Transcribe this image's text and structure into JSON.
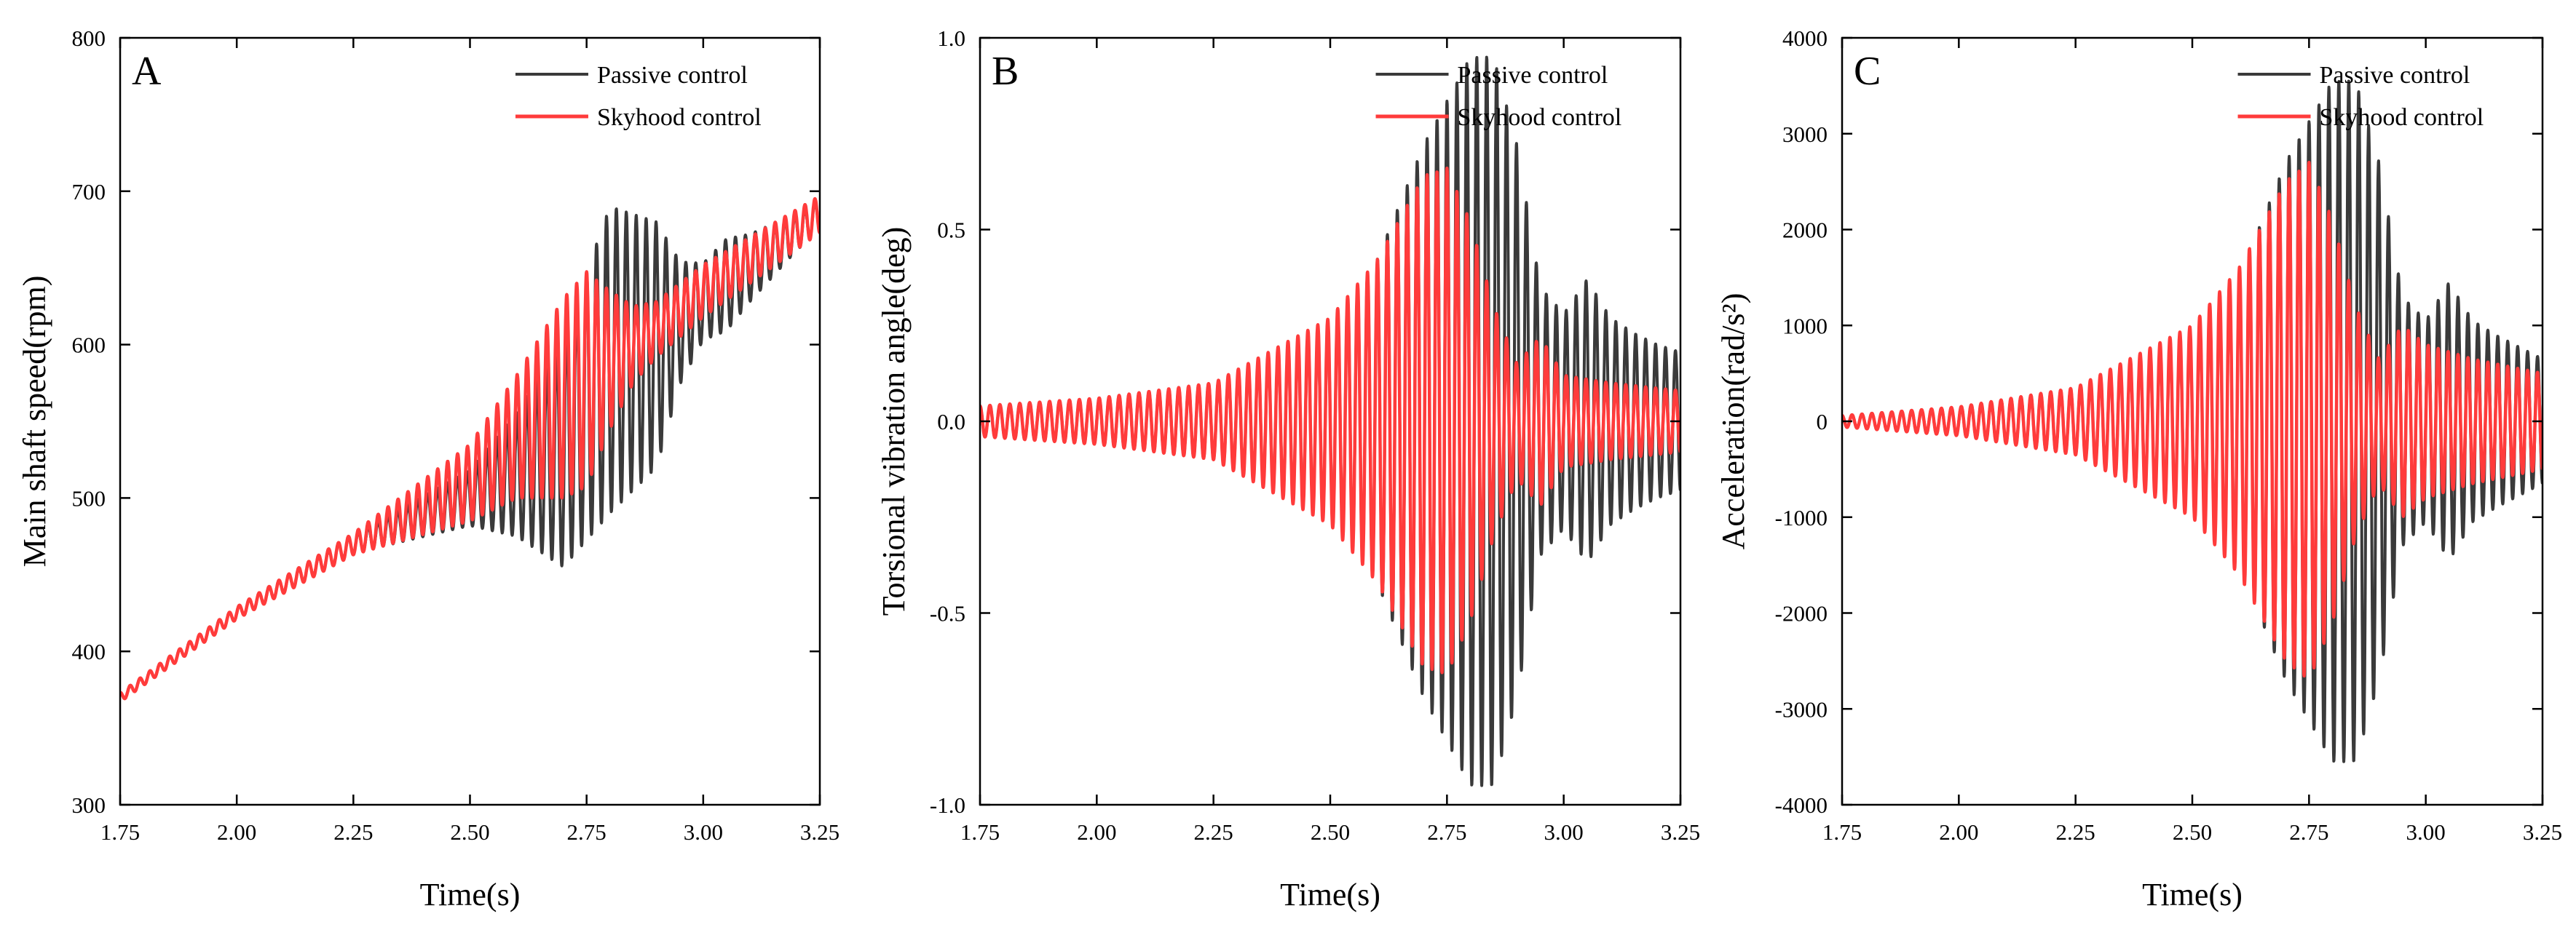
{
  "colors": {
    "passive": "#3a3a3a",
    "skyhook": "#ff3b3b",
    "axis": "#000000",
    "background": "#ffffff"
  },
  "chart_data": [
    {
      "type": "line",
      "panel": "A",
      "xlabel": "Time(s)",
      "ylabel": "Main shaft speed(rpm)",
      "xlim": [
        1.75,
        3.25
      ],
      "ylim": [
        300,
        800
      ],
      "xticks": [
        1.75,
        2.0,
        2.25,
        2.5,
        2.75,
        3.0,
        3.25
      ],
      "xtick_labels": [
        "1.75",
        "2.00",
        "2.25",
        "2.50",
        "2.75",
        "3.00",
        "3.25"
      ],
      "yticks": [
        300,
        400,
        500,
        600,
        700,
        800
      ],
      "ytick_labels": [
        "300",
        "400",
        "500",
        "600",
        "700",
        "800"
      ],
      "legend": {
        "position": "top-right",
        "entries": [
          "Passive control",
          "Skyhood control"
        ]
      },
      "series": [
        {
          "name": "Passive control",
          "color_key": "passive",
          "frequency_hz": 47,
          "baseline": [
            [
              1.75,
              370
            ],
            [
              2.0,
              425
            ],
            [
              2.25,
              470
            ],
            [
              2.5,
              500
            ],
            [
              2.7,
              530
            ],
            [
              2.8,
              590
            ],
            [
              2.9,
              600
            ],
            [
              3.0,
              628
            ],
            [
              3.1,
              650
            ],
            [
              3.25,
              685
            ]
          ],
          "envelope": [
            [
              1.75,
              3
            ],
            [
              2.0,
              4
            ],
            [
              2.25,
              6
            ],
            [
              2.5,
              18
            ],
            [
              2.6,
              40
            ],
            [
              2.7,
              75
            ],
            [
              2.8,
              100
            ],
            [
              2.9,
              80
            ],
            [
              2.95,
              40
            ],
            [
              3.0,
              25
            ],
            [
              3.05,
              30
            ],
            [
              3.1,
              22
            ],
            [
              3.2,
              12
            ],
            [
              3.25,
              10
            ]
          ]
        },
        {
          "name": "Skyhood control",
          "color_key": "skyhook",
          "frequency_hz": 47,
          "baseline": [
            [
              1.75,
              370
            ],
            [
              2.0,
              425
            ],
            [
              2.25,
              470
            ],
            [
              2.5,
              510
            ],
            [
              2.6,
              540
            ],
            [
              2.7,
              565
            ],
            [
              2.8,
              590
            ],
            [
              2.9,
              610
            ],
            [
              3.0,
              635
            ],
            [
              3.1,
              655
            ],
            [
              3.25,
              685
            ]
          ],
          "envelope": [
            [
              1.75,
              3
            ],
            [
              2.0,
              4
            ],
            [
              2.25,
              7
            ],
            [
              2.5,
              25
            ],
            [
              2.6,
              40
            ],
            [
              2.7,
              65
            ],
            [
              2.75,
              70
            ],
            [
              2.8,
              45
            ],
            [
              2.85,
              25
            ],
            [
              2.9,
              18
            ],
            [
              3.0,
              17
            ],
            [
              3.1,
              15
            ],
            [
              3.25,
              12
            ]
          ]
        }
      ]
    },
    {
      "type": "line",
      "panel": "B",
      "xlabel": "Time(s)",
      "ylabel": "Torsional vibration angle(deg)",
      "xlim": [
        1.75,
        3.25
      ],
      "ylim": [
        -1.0,
        1.0
      ],
      "xticks": [
        1.75,
        2.0,
        2.25,
        2.5,
        2.75,
        3.0,
        3.25
      ],
      "xtick_labels": [
        "1.75",
        "2.00",
        "2.25",
        "2.50",
        "2.75",
        "3.00",
        "3.25"
      ],
      "yticks": [
        -1.0,
        -0.5,
        0.0,
        0.5,
        1.0
      ],
      "ytick_labels": [
        "-1.0",
        "-0.5",
        "0.0",
        "0.5",
        "1.0"
      ],
      "legend": {
        "position": "top-right",
        "entries": [
          "Passive control",
          "Skyhood control"
        ]
      },
      "series": [
        {
          "name": "Passive control",
          "color_key": "passive",
          "frequency_hz": 47,
          "baseline": [
            [
              1.75,
              0
            ],
            [
              3.25,
              0
            ]
          ],
          "envelope": [
            [
              1.75,
              0.04
            ],
            [
              2.0,
              0.06
            ],
            [
              2.25,
              0.1
            ],
            [
              2.5,
              0.25
            ],
            [
              2.6,
              0.42
            ],
            [
              2.7,
              0.72
            ],
            [
              2.8,
              0.95
            ],
            [
              2.85,
              0.95
            ],
            [
              2.9,
              0.72
            ],
            [
              2.95,
              0.35
            ],
            [
              3.0,
              0.28
            ],
            [
              3.05,
              0.37
            ],
            [
              3.1,
              0.27
            ],
            [
              3.15,
              0.23
            ],
            [
              3.2,
              0.2
            ],
            [
              3.25,
              0.18
            ]
          ]
        },
        {
          "name": "Skyhood control",
          "color_key": "skyhook",
          "frequency_hz": 47,
          "baseline": [
            [
              1.75,
              0
            ],
            [
              3.25,
              0
            ]
          ],
          "envelope": [
            [
              1.75,
              0.04
            ],
            [
              2.0,
              0.06
            ],
            [
              2.25,
              0.1
            ],
            [
              2.5,
              0.27
            ],
            [
              2.6,
              0.42
            ],
            [
              2.7,
              0.64
            ],
            [
              2.75,
              0.66
            ],
            [
              2.8,
              0.52
            ],
            [
              2.85,
              0.3
            ],
            [
              2.9,
              0.15
            ],
            [
              2.95,
              0.22
            ],
            [
              3.0,
              0.12
            ],
            [
              3.1,
              0.1
            ],
            [
              3.25,
              0.08
            ]
          ]
        }
      ]
    },
    {
      "type": "line",
      "panel": "C",
      "xlabel": "Time(s)",
      "ylabel": "Acceleration(rad/s²)",
      "xlim": [
        1.75,
        3.25
      ],
      "ylim": [
        -4000,
        4000
      ],
      "xticks": [
        1.75,
        2.0,
        2.25,
        2.5,
        2.75,
        3.0,
        3.25
      ],
      "xtick_labels": [
        "1.75",
        "2.00",
        "2.25",
        "2.50",
        "2.75",
        "3.00",
        "3.25"
      ],
      "yticks": [
        -4000,
        -3000,
        -2000,
        -1000,
        0,
        1000,
        2000,
        3000,
        4000
      ],
      "ytick_labels": [
        "-4000",
        "-3000",
        "-2000",
        "-1000",
        "0",
        "1000",
        "2000",
        "3000",
        "4000"
      ],
      "legend": {
        "position": "top-right",
        "entries": [
          "Passive control",
          "Skyhood control"
        ]
      },
      "series": [
        {
          "name": "Passive control",
          "color_key": "passive",
          "frequency_hz": 47,
          "baseline": [
            [
              1.75,
              0
            ],
            [
              3.25,
              0
            ]
          ],
          "envelope": [
            [
              1.75,
              60
            ],
            [
              2.0,
              150
            ],
            [
              2.25,
              350
            ],
            [
              2.5,
              900
            ],
            [
              2.6,
              1500
            ],
            [
              2.7,
              2700
            ],
            [
              2.8,
              3550
            ],
            [
              2.85,
              3550
            ],
            [
              2.9,
              2700
            ],
            [
              2.95,
              1300
            ],
            [
              3.0,
              1050
            ],
            [
              3.05,
              1450
            ],
            [
              3.1,
              1050
            ],
            [
              3.15,
              900
            ],
            [
              3.25,
              650
            ]
          ]
        },
        {
          "name": "Skyhood control",
          "color_key": "skyhook",
          "frequency_hz": 47,
          "baseline": [
            [
              1.75,
              0
            ],
            [
              3.25,
              0
            ]
          ],
          "envelope": [
            [
              1.75,
              60
            ],
            [
              2.0,
              150
            ],
            [
              2.25,
              350
            ],
            [
              2.5,
              1000
            ],
            [
              2.6,
              1600
            ],
            [
              2.7,
              2500
            ],
            [
              2.75,
              2700
            ],
            [
              2.8,
              2100
            ],
            [
              2.85,
              1200
            ],
            [
              2.9,
              650
            ],
            [
              2.95,
              1000
            ],
            [
              3.0,
              800
            ],
            [
              3.1,
              650
            ],
            [
              3.25,
              500
            ]
          ]
        }
      ]
    }
  ]
}
